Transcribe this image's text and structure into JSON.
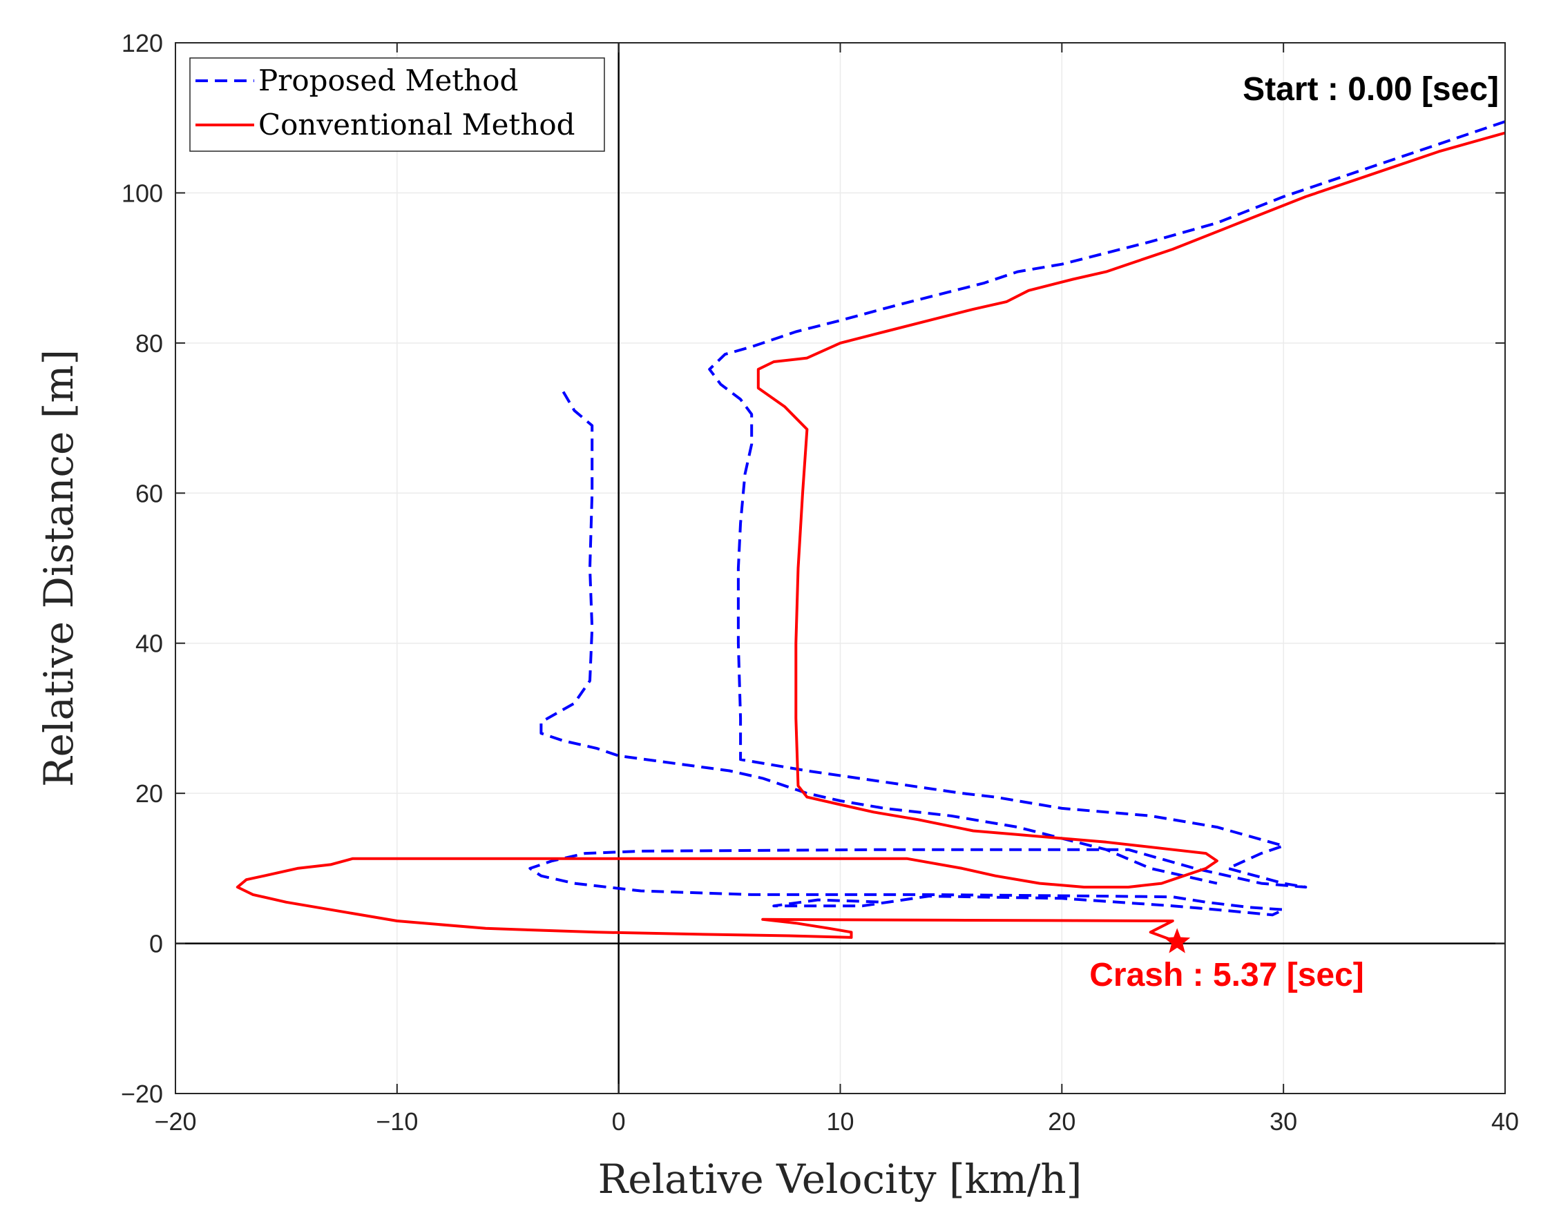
{
  "chart_data": {
    "type": "line",
    "title": "",
    "xlabel": "Relative Velocity [km/h]",
    "ylabel": "Relative Distance [m]",
    "xlim": [
      -20,
      40
    ],
    "ylim": [
      -20,
      120
    ],
    "xticks": [
      -20,
      -10,
      0,
      10,
      20,
      30,
      40
    ],
    "yticks": [
      -20,
      0,
      20,
      40,
      60,
      80,
      100,
      120
    ],
    "xtick_labels": [
      "−20",
      "−10",
      "0",
      "10",
      "20",
      "30",
      "40"
    ],
    "ytick_labels": [
      "−20",
      "0",
      "20",
      "40",
      "60",
      "80",
      "100",
      "120"
    ],
    "grid": true,
    "legend_position": "top-left",
    "reference_lines": {
      "x": 0,
      "y": 0
    },
    "series": [
      {
        "name": "Proposed Method",
        "color": "#0000ff",
        "style": "dashed",
        "points": [
          [
            40.0,
            109.5
          ],
          [
            37.0,
            106.5
          ],
          [
            34.0,
            103.5
          ],
          [
            30.0,
            99.5
          ],
          [
            27.0,
            96.0
          ],
          [
            24.0,
            93.5
          ],
          [
            22.0,
            92.0
          ],
          [
            20.0,
            90.5
          ],
          [
            18.0,
            89.5
          ],
          [
            16.5,
            88.0
          ],
          [
            14.5,
            86.5
          ],
          [
            12.5,
            85.0
          ],
          [
            10.0,
            83.0
          ],
          [
            8.0,
            81.5
          ],
          [
            6.0,
            79.5
          ],
          [
            4.8,
            78.5
          ],
          [
            4.1,
            76.5
          ],
          [
            4.6,
            74.5
          ],
          [
            5.5,
            72.5
          ],
          [
            6.0,
            70.5
          ],
          [
            6.0,
            66.5
          ],
          [
            5.7,
            62.5
          ],
          [
            5.5,
            56.0
          ],
          [
            5.4,
            50.0
          ],
          [
            5.4,
            40.0
          ],
          [
            5.5,
            30.0
          ],
          [
            5.5,
            24.5
          ],
          [
            8.5,
            23.0
          ],
          [
            12.0,
            21.5
          ],
          [
            15.5,
            20.0
          ],
          [
            17.0,
            19.5
          ],
          [
            20.0,
            18.0
          ],
          [
            24.0,
            17.0
          ],
          [
            27.0,
            15.5
          ],
          [
            30.0,
            13.0
          ],
          [
            29.0,
            12.0
          ],
          [
            27.5,
            10.0
          ],
          [
            30.0,
            8.0
          ],
          [
            31.0,
            7.5
          ],
          [
            29.0,
            8.0
          ],
          [
            26.0,
            10.0
          ],
          [
            23.0,
            12.5
          ],
          [
            12.0,
            12.5
          ],
          [
            1.0,
            12.3
          ],
          [
            -1.5,
            12.0
          ],
          [
            -3.0,
            11.0
          ],
          [
            -4.0,
            10.0
          ],
          [
            -3.5,
            9.0
          ],
          [
            -2.0,
            8.0
          ],
          [
            1.0,
            7.0
          ],
          [
            6.0,
            6.5
          ],
          [
            14.0,
            6.5
          ],
          [
            22.0,
            6.3
          ],
          [
            25.0,
            6.2
          ],
          [
            26.5,
            5.5
          ],
          [
            28.5,
            4.8
          ],
          [
            30.0,
            4.5
          ],
          [
            29.5,
            3.8
          ],
          [
            27.0,
            4.5
          ],
          [
            25.0,
            5.0
          ],
          [
            20.0,
            6.0
          ],
          [
            14.0,
            6.3
          ],
          [
            11.0,
            5.0
          ],
          [
            7.0,
            5.0
          ],
          [
            9.0,
            5.8
          ],
          [
            12.0,
            5.5
          ]
        ]
      },
      {
        "name": "Proposed Method",
        "color": "#0000ff",
        "style": "dashed",
        "points": [
          [
            -2.5,
            73.5
          ],
          [
            -2.0,
            71.0
          ],
          [
            -1.2,
            69.0
          ],
          [
            -1.2,
            60.0
          ],
          [
            -1.3,
            50.0
          ],
          [
            -1.2,
            42.0
          ],
          [
            -1.3,
            35.0
          ],
          [
            -2.0,
            32.0
          ],
          [
            -3.5,
            29.5
          ],
          [
            -3.5,
            28.0
          ],
          [
            -2.5,
            27.0
          ],
          [
            -1.0,
            26.0
          ],
          [
            0.0,
            25.0
          ],
          [
            2.5,
            24.0
          ],
          [
            5.0,
            23.0
          ],
          [
            6.5,
            22.0
          ],
          [
            8.5,
            20.0
          ],
          [
            10.0,
            19.0
          ],
          [
            12.0,
            18.0
          ],
          [
            15.0,
            17.0
          ],
          [
            18.0,
            15.5
          ],
          [
            20.0,
            14.0
          ],
          [
            22.0,
            12.5
          ],
          [
            24.0,
            10.0
          ],
          [
            25.5,
            9.0
          ],
          [
            27.0,
            8.0
          ]
        ]
      },
      {
        "name": "Conventional Method",
        "color": "#ff0000",
        "style": "solid",
        "points": [
          [
            40.0,
            108.0
          ],
          [
            37.0,
            105.5
          ],
          [
            34.0,
            102.5
          ],
          [
            31.0,
            99.5
          ],
          [
            28.0,
            96.0
          ],
          [
            25.0,
            92.5
          ],
          [
            24.0,
            91.5
          ],
          [
            22.0,
            89.5
          ],
          [
            20.5,
            88.5
          ],
          [
            18.5,
            87.0
          ],
          [
            17.5,
            85.5
          ],
          [
            16.0,
            84.5
          ],
          [
            14.0,
            83.0
          ],
          [
            12.0,
            81.5
          ],
          [
            10.0,
            80.0
          ],
          [
            8.5,
            78.0
          ],
          [
            7.0,
            77.5
          ],
          [
            6.3,
            76.5
          ],
          [
            6.3,
            74.0
          ],
          [
            7.5,
            71.5
          ],
          [
            8.5,
            68.5
          ],
          [
            8.3,
            60.0
          ],
          [
            8.1,
            50.0
          ],
          [
            8.0,
            40.0
          ],
          [
            8.0,
            30.0
          ],
          [
            8.1,
            21.0
          ],
          [
            8.5,
            19.5
          ],
          [
            10.0,
            18.5
          ],
          [
            11.5,
            17.5
          ],
          [
            13.5,
            16.5
          ],
          [
            16.0,
            15.0
          ],
          [
            18.0,
            14.5
          ],
          [
            20.0,
            14.0
          ],
          [
            22.0,
            13.5
          ],
          [
            23.5,
            13.0
          ],
          [
            25.0,
            12.5
          ],
          [
            26.5,
            12.0
          ],
          [
            27.0,
            11.0
          ],
          [
            26.5,
            10.0
          ],
          [
            25.5,
            9.0
          ],
          [
            24.5,
            8.0
          ],
          [
            23.0,
            7.5
          ],
          [
            21.0,
            7.5
          ],
          [
            19.0,
            8.0
          ],
          [
            17.0,
            9.0
          ],
          [
            15.5,
            10.0
          ],
          [
            13.0,
            11.3
          ],
          [
            -6.0,
            11.3
          ],
          [
            -10.0,
            11.3
          ],
          [
            -12.0,
            11.3
          ],
          [
            -13.0,
            10.5
          ],
          [
            -14.5,
            10.0
          ],
          [
            -16.0,
            9.0
          ],
          [
            -16.8,
            8.5
          ],
          [
            -17.2,
            7.5
          ],
          [
            -16.5,
            6.5
          ],
          [
            -15.0,
            5.5
          ],
          [
            -13.0,
            4.5
          ],
          [
            -10.0,
            3.0
          ],
          [
            -6.0,
            2.0
          ],
          [
            -1.0,
            1.5
          ],
          [
            4.0,
            1.2
          ],
          [
            8.0,
            1.0
          ],
          [
            10.5,
            0.8
          ],
          [
            10.5,
            1.5
          ],
          [
            9.5,
            2.0
          ],
          [
            8.0,
            2.7
          ],
          [
            6.5,
            3.2
          ],
          [
            15.0,
            3.1
          ],
          [
            25.0,
            3.0
          ],
          [
            24.0,
            1.5
          ],
          [
            25.2,
            0.2
          ]
        ]
      }
    ],
    "legend": [
      {
        "label": "Proposed Method",
        "style": "dashed",
        "color": "#0000ff"
      },
      {
        "label": "Conventional Method",
        "style": "solid",
        "color": "#ff0000"
      }
    ],
    "annotations": [
      {
        "text": "Start : 0.00 [sec]",
        "color": "#000000"
      },
      {
        "text": "Crash : 5.37 [sec]",
        "color": "#ff0000",
        "marker": "star",
        "x": 25.2,
        "y": 0.2
      }
    ]
  }
}
